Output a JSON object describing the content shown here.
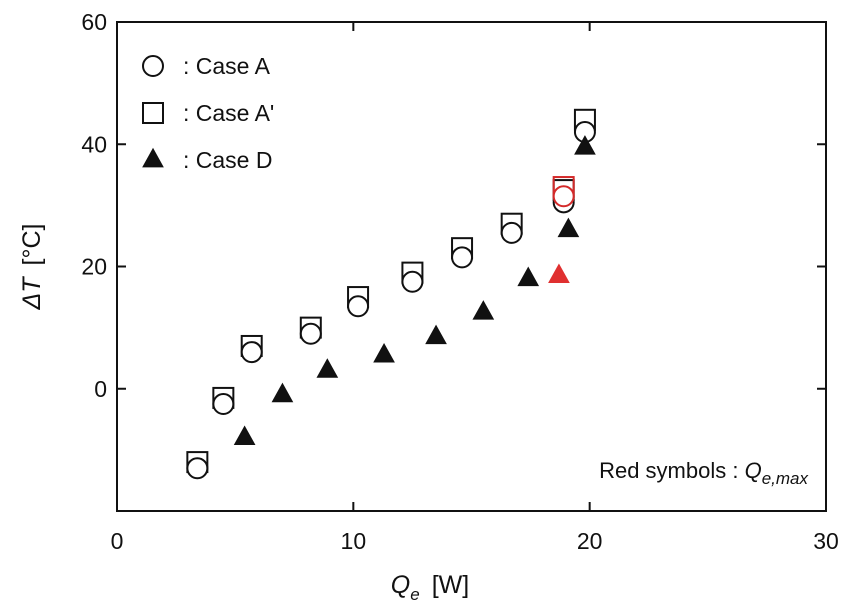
{
  "chart_data": {
    "type": "scatter",
    "title": "",
    "xlabel": "Q_e [W]",
    "xlabel_main": "Q",
    "xlabel_sub": "e",
    "xlabel_unit": "[W]",
    "ylabel": "ΔT [°C]",
    "ylabel_var": "ΔT",
    "ylabel_unit": "[°C]",
    "xlim": [
      0,
      30
    ],
    "ylim": [
      -20,
      60
    ],
    "xticks": [
      0,
      10,
      20,
      30
    ],
    "yticks": [
      0,
      20,
      40,
      60
    ],
    "xtick_labels": [
      "0",
      "10",
      "20",
      "30"
    ],
    "ytick_labels": [
      "0",
      "20",
      "40",
      "60"
    ],
    "grid": false,
    "legend_position": "top-left",
    "series": [
      {
        "name": "Case A",
        "legend_label": ": Case A",
        "marker": "circle-open",
        "color": "#111111",
        "x": [
          3.4,
          4.5,
          5.7,
          8.2,
          10.2,
          12.5,
          14.6,
          16.7,
          18.9,
          19.8
        ],
        "y": [
          -13,
          -2.5,
          6,
          9,
          13.5,
          17.5,
          21.5,
          25.5,
          30.5,
          42
        ]
      },
      {
        "name": "Case A'",
        "legend_label": ": Case A'",
        "marker": "square-open",
        "color": "#111111",
        "x": [
          3.4,
          4.5,
          5.7,
          8.2,
          10.2,
          12.5,
          14.6,
          16.7,
          18.9,
          19.8
        ],
        "y": [
          -12,
          -1.5,
          7,
          10,
          15,
          19,
          23,
          27,
          32.5,
          44
        ]
      },
      {
        "name": "Case D",
        "legend_label": ": Case D",
        "marker": "triangle-filled",
        "color": "#111111",
        "x": [
          5.4,
          7.0,
          8.9,
          11.3,
          13.5,
          15.5,
          17.4,
          19.1,
          19.8
        ],
        "y": [
          -8,
          -1,
          3,
          5.5,
          8.5,
          12.5,
          18,
          26,
          39.5
        ]
      }
    ],
    "max_points": [
      {
        "series": "Case A",
        "marker": "circle-open",
        "color": "#d42a2a",
        "x": 18.9,
        "y": 31.5
      },
      {
        "series": "Case A'",
        "marker": "square-open",
        "color": "#d42a2a",
        "x": 18.9,
        "y": 33
      },
      {
        "series": "Case D",
        "marker": "triangle-filled",
        "color": "#e03030",
        "x": 18.7,
        "y": 18.5
      }
    ],
    "annotation": {
      "prefix": "Red symbols : ",
      "q": "Q",
      "sub": "e,max",
      "position": "bottom-right"
    }
  }
}
